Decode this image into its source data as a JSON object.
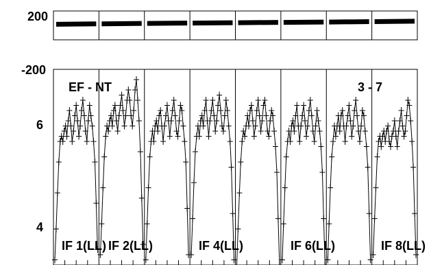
{
  "chart_data": {
    "type": "line",
    "baseline_label": "EF - NT",
    "baseline_number": "3 - 7",
    "phase_panel": {
      "yticks": [
        "200",
        "-200"
      ],
      "ylim": [
        -200,
        200
      ],
      "series": [
        {
          "if": 1,
          "start": 16,
          "end": 21
        },
        {
          "if": 2,
          "start": 21,
          "end": 27
        },
        {
          "if": 3,
          "start": 27,
          "end": 32
        },
        {
          "if": 4,
          "start": 32,
          "end": 37
        },
        {
          "if": 5,
          "start": 37,
          "end": 42
        },
        {
          "if": 6,
          "start": 42,
          "end": 47
        },
        {
          "if": 7,
          "start": 47,
          "end": 52
        },
        {
          "if": 8,
          "start": 52,
          "end": 58
        }
      ]
    },
    "amplitude_panel": {
      "yticks": [
        "6",
        "4"
      ],
      "ylim": [
        3.6,
        7.4
      ],
      "panel_labels": [
        "IF 1(LL)",
        "IF 2(LL)",
        "IF 4(LL)",
        "IF 6(LL)",
        "IF 8(LL)"
      ],
      "ifs": [
        {
          "if": 1,
          "values": [
            3.7,
            4.3,
            5.0,
            5.6,
            6.0,
            6.1,
            6.0,
            6.2,
            6.3,
            6.1,
            6.4,
            6.6,
            6.3,
            6.0,
            6.2,
            6.5,
            6.7,
            6.4,
            6.1,
            6.3,
            6.6,
            6.8,
            6.5,
            6.2,
            6.0,
            6.4,
            6.7,
            6.5,
            6.3,
            6.0,
            5.6,
            4.8,
            3.9
          ]
        },
        {
          "if": 2,
          "values": [
            3.8,
            4.4,
            5.1,
            5.7,
            6.1,
            6.3,
            6.2,
            6.4,
            6.5,
            6.3,
            6.6,
            6.7,
            6.4,
            6.2,
            6.5,
            6.7,
            6.9,
            6.6,
            6.3,
            6.5,
            6.8,
            7.0,
            6.8,
            6.5,
            6.3,
            6.6,
            7.0,
            7.2,
            6.8,
            6.4,
            5.8,
            4.9,
            4.0
          ]
        },
        {
          "if": 3,
          "values": [
            3.7,
            4.4,
            5.1,
            5.7,
            6.0,
            6.2,
            6.0,
            6.3,
            6.4,
            6.2,
            6.5,
            6.6,
            6.3,
            6.0,
            6.3,
            6.5,
            6.7,
            6.4,
            6.1,
            6.4,
            6.6,
            6.8,
            6.5,
            6.2,
            6.1,
            6.4,
            6.7,
            6.6,
            6.3,
            6.0,
            5.6,
            4.7,
            3.8
          ]
        },
        {
          "if": 4,
          "values": [
            3.8,
            4.5,
            5.2,
            5.8,
            6.1,
            6.3,
            6.1,
            6.4,
            6.5,
            6.3,
            6.6,
            6.8,
            6.4,
            6.1,
            6.4,
            6.6,
            6.8,
            6.5,
            6.2,
            6.4,
            6.7,
            6.9,
            6.6,
            6.3,
            6.2,
            6.5,
            6.8,
            6.6,
            6.3,
            6.0,
            5.5,
            4.6,
            3.7
          ]
        },
        {
          "if": 5,
          "values": [
            3.6,
            4.3,
            5.0,
            5.6,
            6.0,
            6.2,
            6.1,
            6.3,
            6.5,
            6.3,
            6.6,
            6.7,
            6.4,
            6.1,
            6.3,
            6.6,
            6.8,
            6.5,
            6.2,
            6.4,
            6.7,
            6.8,
            6.5,
            6.2,
            6.1,
            6.4,
            6.6,
            6.5,
            6.2,
            5.9,
            5.4,
            4.5,
            3.6
          ]
        },
        {
          "if": 6,
          "values": [
            3.7,
            4.4,
            5.1,
            5.7,
            6.0,
            6.2,
            6.0,
            6.3,
            6.4,
            6.2,
            6.5,
            6.7,
            6.3,
            6.0,
            6.3,
            6.5,
            6.7,
            6.4,
            6.1,
            6.3,
            6.6,
            6.8,
            6.5,
            6.2,
            6.0,
            6.3,
            6.6,
            6.4,
            6.2,
            5.9,
            5.4,
            4.5,
            3.6
          ]
        },
        {
          "if": 7,
          "values": [
            3.7,
            4.4,
            5.1,
            5.7,
            6.0,
            6.3,
            6.1,
            6.3,
            6.5,
            6.2,
            6.5,
            6.6,
            6.3,
            6.0,
            6.3,
            6.5,
            6.7,
            6.4,
            6.1,
            6.3,
            6.6,
            6.8,
            6.5,
            6.2,
            6.0,
            6.3,
            6.6,
            6.5,
            6.2,
            5.9,
            5.5,
            4.6,
            3.7
          ]
        },
        {
          "if": 8,
          "values": [
            3.8,
            4.5,
            5.1,
            5.7,
            6.0,
            6.1,
            5.9,
            6.1,
            6.2,
            6.0,
            6.2,
            6.3,
            6.0,
            5.9,
            6.1,
            6.2,
            6.4,
            6.1,
            5.9,
            6.2,
            6.4,
            6.6,
            6.3,
            6.1,
            6.2,
            6.5,
            6.8,
            6.7,
            6.4,
            6.0,
            5.5,
            4.6,
            3.8
          ]
        }
      ]
    }
  }
}
